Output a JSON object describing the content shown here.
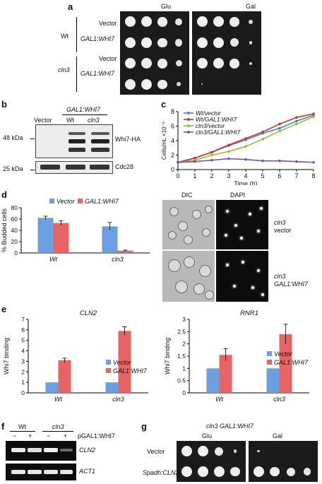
{
  "panel_a": {
    "letter": "a",
    "glu_label": "Glu",
    "gal_label": "Gal",
    "rows": [
      {
        "strain": "Wt",
        "construct": "Vector"
      },
      {
        "strain": "",
        "construct": "GAL1:WHI7"
      },
      {
        "strain": "cln3",
        "construct": "Vector"
      },
      {
        "strain": "",
        "construct": "GAL1:WHI7"
      }
    ]
  },
  "panel_b": {
    "letter": "b",
    "header": "GAL1:WHI7",
    "lanes": [
      "Vector",
      "Wt",
      "cln3"
    ],
    "markers": [
      "48 kDa",
      "25 kDa"
    ],
    "bands": [
      "Whi7-HA",
      "Cdc28"
    ]
  },
  "panel_c": {
    "letter": "c",
    "ylabel": "Cells/mL ×10⁻⁶",
    "xlabel": "Time (h)",
    "legend": [
      "Wt/vector",
      "Wt/GAL1:WHI7",
      "cln3/vector",
      "cln3/GAL1:WHI7"
    ]
  },
  "panel_d": {
    "letter": "d",
    "legend": [
      "Vector",
      "GAL1:WHI7"
    ],
    "ylabel": "% Budded cells",
    "micro_headers": [
      "DIC",
      "DAPI"
    ],
    "micro_row1": [
      "cln3",
      "vector"
    ],
    "micro_row2": [
      "cln3",
      "GAL1:WHI7"
    ]
  },
  "panel_e": {
    "letter": "e",
    "left_title": "CLN2",
    "right_title": "RNR1",
    "ylabel": "Whi7 binding",
    "legend": [
      "Vector",
      "GAL1:WHI7"
    ]
  },
  "panel_f": {
    "letter": "f",
    "groups": [
      "Wt",
      "cln3"
    ],
    "signs": [
      "−",
      "+",
      "−",
      "+"
    ],
    "condition": "pGAL1:WHI7",
    "bands": [
      "CLN2",
      "ACT1"
    ]
  },
  "panel_g": {
    "letter": "g",
    "title": "cln3 GAL1:WHI7",
    "glu_label": "Glu",
    "gal_label": "Gal",
    "rows": [
      "Vector",
      "Spadh:CLN2"
    ]
  },
  "chart_data": [
    {
      "id": "c",
      "type": "line",
      "xlabel": "Time (h)",
      "ylabel": "Cells/mL ×10⁻⁶",
      "xlim": [
        0,
        8
      ],
      "ylim": [
        0,
        8
      ],
      "x": [
        0,
        1,
        2,
        3,
        4,
        5,
        6,
        7,
        8
      ],
      "series": [
        {
          "name": "Wt/vector",
          "color": "#4a7fc1",
          "values": [
            1.0,
            1.6,
            2.4,
            3.3,
            4.1,
            5.0,
            5.7,
            6.7,
            7.5
          ]
        },
        {
          "name": "Wt/GAL1:WHI7",
          "color": "#c0392b",
          "values": [
            1.0,
            1.6,
            2.4,
            3.4,
            4.3,
            5.2,
            6.3,
            7.2,
            7.7
          ]
        },
        {
          "name": "cln3/vector",
          "color": "#8fbe3a",
          "values": [
            1.0,
            1.3,
            2.0,
            2.5,
            3.2,
            4.2,
            5.3,
            6.3,
            7.3
          ]
        },
        {
          "name": "cln3/GAL1:WHI7",
          "color": "#7b4fa5",
          "values": [
            1.0,
            1.1,
            1.3,
            1.5,
            1.4,
            1.2,
            1.2,
            1.1,
            1.0
          ]
        }
      ]
    },
    {
      "id": "d",
      "type": "bar",
      "categories": [
        "Wt",
        "cln3"
      ],
      "ylabel": "% Budded cells",
      "ylim": [
        0,
        80
      ],
      "series": [
        {
          "name": "Vector",
          "color": "#6c9fdf",
          "values": [
            62,
            47
          ],
          "err": [
            3,
            7
          ]
        },
        {
          "name": "GAL1:WHI7",
          "color": "#e86464",
          "values": [
            53,
            4
          ],
          "err": [
            4,
            1
          ]
        }
      ]
    },
    {
      "id": "e_left",
      "type": "bar",
      "title": "CLN2",
      "categories": [
        "Wt",
        "cln3"
      ],
      "ylabel": "Whi7 binding",
      "ylim": [
        0,
        7
      ],
      "series": [
        {
          "name": "Vector",
          "color": "#6c9fdf",
          "values": [
            1,
            1
          ],
          "err": [
            0,
            0
          ]
        },
        {
          "name": "GAL1:WHI7",
          "color": "#e86464",
          "values": [
            3.1,
            5.9
          ],
          "err": [
            0.2,
            0.4
          ]
        }
      ]
    },
    {
      "id": "e_right",
      "type": "bar",
      "title": "RNR1",
      "categories": [
        "Wt",
        "cln3"
      ],
      "ylabel": "Whi7 binding",
      "ylim": [
        0,
        3
      ],
      "series": [
        {
          "name": "Vector",
          "color": "#6c9fdf",
          "values": [
            1,
            1
          ],
          "err": [
            0,
            0
          ]
        },
        {
          "name": "GAL1:WHI7",
          "color": "#e86464",
          "values": [
            1.55,
            2.4
          ],
          "err": [
            0.25,
            0.4
          ]
        }
      ]
    }
  ]
}
